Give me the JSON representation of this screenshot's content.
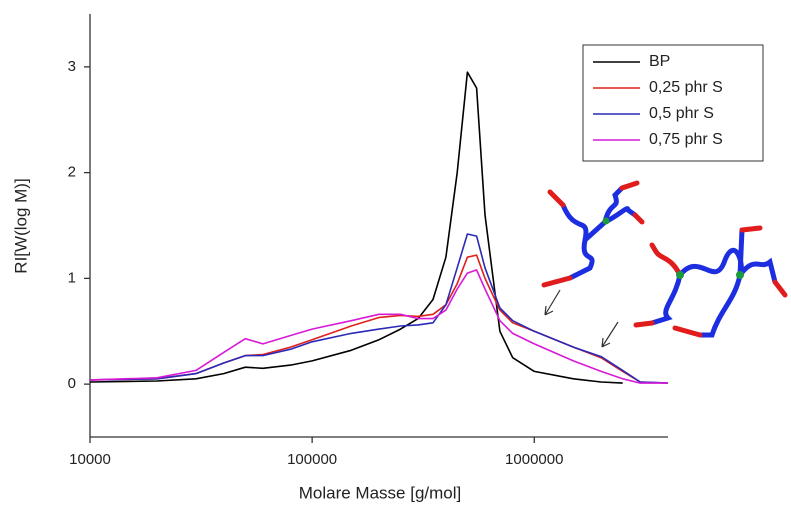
{
  "chart_data": {
    "type": "line",
    "x_label": "Molare Masse [g/mol]",
    "y_label": "RI[W(log M)]",
    "log_x": true,
    "grid": false,
    "legend": "top-right",
    "x": [
      10000,
      20000,
      30000,
      40000,
      50000,
      60000,
      80000,
      100000,
      150000,
      200000,
      250000,
      300000,
      350000,
      400000,
      450000,
      500000,
      550000,
      600000,
      700000,
      800000,
      1000000,
      1500000,
      2000000,
      2500000,
      3000000,
      4000000
    ],
    "series": [
      {
        "name": "BP",
        "color": "#000000",
        "values": [
          0.02,
          0.03,
          0.05,
          0.1,
          0.16,
          0.15,
          0.18,
          0.22,
          0.32,
          0.42,
          0.52,
          0.62,
          0.8,
          1.2,
          2.0,
          2.95,
          2.8,
          1.6,
          0.5,
          0.25,
          0.12,
          0.05,
          0.02,
          0.01,
          null,
          null
        ]
      },
      {
        "name": "0,25 phr S",
        "color": "#e0201c",
        "values": [
          0.04,
          0.05,
          0.1,
          0.2,
          0.27,
          0.28,
          0.35,
          0.42,
          0.55,
          0.63,
          0.65,
          0.64,
          0.66,
          0.75,
          0.95,
          1.2,
          1.22,
          1.0,
          0.7,
          0.58,
          0.5,
          0.35,
          0.25,
          0.12,
          0.02,
          0.01
        ]
      },
      {
        "name": "0,5 phr S",
        "color": "#2a2ab8",
        "values": [
          0.04,
          0.05,
          0.1,
          0.2,
          0.27,
          0.27,
          0.33,
          0.4,
          0.48,
          0.52,
          0.55,
          0.56,
          0.58,
          0.75,
          1.1,
          1.42,
          1.4,
          1.1,
          0.72,
          0.6,
          0.5,
          0.35,
          0.26,
          0.13,
          0.02,
          0.01
        ]
      },
      {
        "name": "0,75 phr S",
        "color": "#d81ad8",
        "values": [
          0.04,
          0.06,
          0.13,
          0.3,
          0.43,
          0.38,
          0.46,
          0.52,
          0.6,
          0.66,
          0.66,
          0.62,
          0.62,
          0.7,
          0.9,
          1.05,
          1.08,
          0.9,
          0.6,
          0.48,
          0.38,
          0.22,
          0.12,
          0.05,
          0.01,
          0.01
        ]
      }
    ],
    "xlim": [
      10000,
      4000000
    ],
    "xticks": [
      10000,
      100000,
      1000000
    ],
    "ylim": [
      -0.5,
      3.5
    ],
    "yticks": [
      0,
      1,
      2,
      3
    ]
  }
}
